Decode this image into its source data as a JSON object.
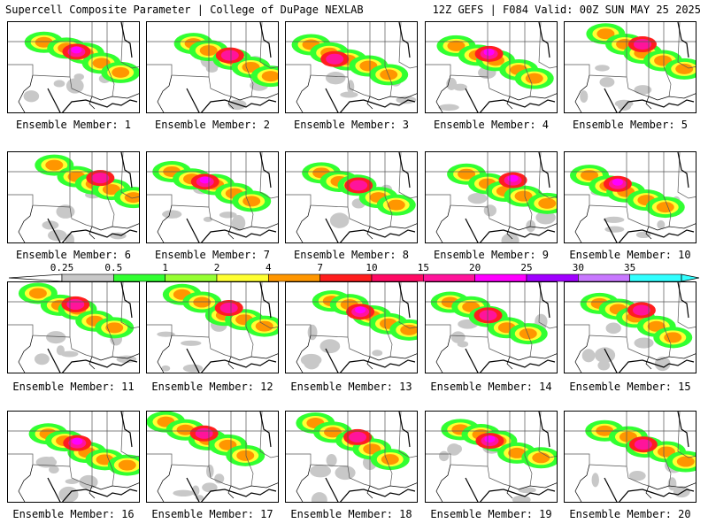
{
  "header": {
    "title": "Supercell Composite Parameter | College of DuPage NEXLAB",
    "run_info": "12Z GEFS | F084 Valid: 00Z SUN MAY 25 2025"
  },
  "member_label_prefix": "Ensemble Member: ",
  "members": [
    1,
    2,
    3,
    4,
    5,
    6,
    7,
    8,
    9,
    10,
    11,
    12,
    13,
    14,
    15,
    16,
    17,
    18,
    19,
    20
  ],
  "colorbar": {
    "ticks": [
      "0.25",
      "0.5",
      "1",
      "2",
      "4",
      "7",
      "10",
      "15",
      "20",
      "25",
      "30",
      "35"
    ],
    "colors": [
      "#c8c8c8",
      "#32ff32",
      "#96ff32",
      "#ffff32",
      "#ff9600",
      "#ff1e1e",
      "#ff0a64",
      "#ff149b",
      "#ff00ff",
      "#a000ff",
      "#c878ff",
      "#32ffff"
    ]
  }
}
